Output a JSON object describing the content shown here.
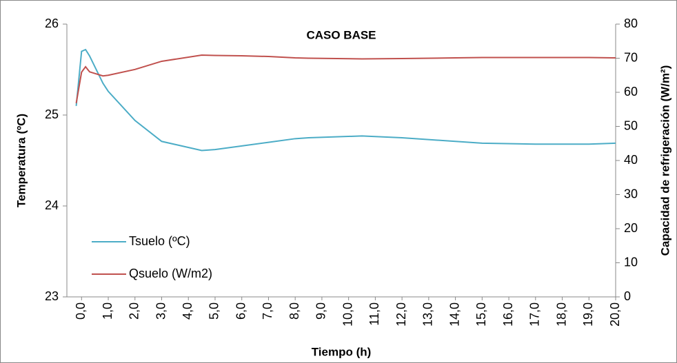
{
  "chart_data": {
    "type": "line",
    "title": "CASO BASE",
    "x_label": "Tiempo (h)",
    "y_label": "Temperatura (ºC)",
    "y2_label": "Capacidad de refrigeración (W/m²)",
    "x": [
      -0.2,
      0.0,
      0.15,
      0.3,
      0.8,
      1.0,
      2.0,
      3.0,
      4.5,
      5.0,
      6.0,
      7.0,
      8.0,
      8.5,
      10.5,
      12.0,
      14.0,
      15.0,
      17.0,
      19.0,
      20.0
    ],
    "series": [
      {
        "name": "Tsuelo (ºC)",
        "color": "#4bacc6",
        "values": [
          25.1,
          25.7,
          25.72,
          25.65,
          25.35,
          25.26,
          24.94,
          24.71,
          24.61,
          24.62,
          24.66,
          24.7,
          24.74,
          24.75,
          24.77,
          24.75,
          24.71,
          24.69,
          24.68,
          24.68,
          24.69
        ]
      },
      {
        "name": "Qsuelo (W/m2)",
        "color": "#c0504d",
        "axis": "y2",
        "values": [
          56.8,
          65.9,
          67.5,
          66.0,
          64.8,
          65.0,
          66.7,
          69.1,
          70.9,
          70.8,
          70.7,
          70.5,
          70.1,
          70.0,
          69.8,
          69.9,
          70.1,
          70.2,
          70.2,
          70.2,
          70.1
        ]
      }
    ],
    "xlim": [
      -0.55,
      20
    ],
    "xticks": [
      {
        "value": 0,
        "label": "0,0"
      },
      {
        "value": 1,
        "label": "1,0"
      },
      {
        "value": 2,
        "label": "2,0"
      },
      {
        "value": 3,
        "label": "3,0"
      },
      {
        "value": 4,
        "label": "4,0"
      },
      {
        "value": 5,
        "label": "5,0"
      },
      {
        "value": 6,
        "label": "6,0"
      },
      {
        "value": 7,
        "label": "7,0"
      },
      {
        "value": 8,
        "label": "8,0"
      },
      {
        "value": 9,
        "label": "9,0"
      },
      {
        "value": 10,
        "label": "10,0"
      },
      {
        "value": 11,
        "label": "11,0"
      },
      {
        "value": 12,
        "label": "12,0"
      },
      {
        "value": 13,
        "label": "13,0"
      },
      {
        "value": 14,
        "label": "14,0"
      },
      {
        "value": 15,
        "label": "15,0"
      },
      {
        "value": 16,
        "label": "16,0"
      },
      {
        "value": 17,
        "label": "17,0"
      },
      {
        "value": 18,
        "label": "18,0"
      },
      {
        "value": 19,
        "label": "19,0"
      },
      {
        "value": 20,
        "label": "20,0"
      }
    ],
    "ylim": [
      23,
      26
    ],
    "yticks": [
      23,
      24,
      25,
      26
    ],
    "y2lim": [
      0,
      80
    ],
    "y2ticks": [
      0,
      10,
      20,
      30,
      40,
      50,
      60,
      70,
      80
    ],
    "grid": false
  }
}
